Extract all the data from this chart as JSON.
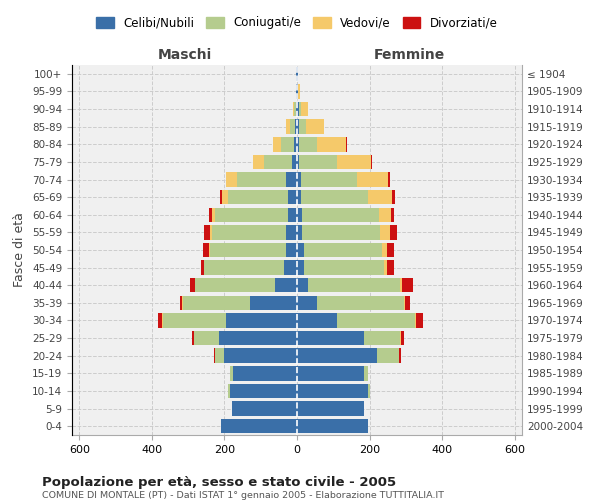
{
  "age_groups": [
    "0-4",
    "5-9",
    "10-14",
    "15-19",
    "20-24",
    "25-29",
    "30-34",
    "35-39",
    "40-44",
    "45-49",
    "50-54",
    "55-59",
    "60-64",
    "65-69",
    "70-74",
    "75-79",
    "80-84",
    "85-89",
    "90-94",
    "95-99",
    "100+"
  ],
  "birth_years": [
    "2000-2004",
    "1995-1999",
    "1990-1994",
    "1985-1989",
    "1980-1984",
    "1975-1979",
    "1970-1974",
    "1965-1969",
    "1960-1964",
    "1955-1959",
    "1950-1954",
    "1945-1949",
    "1940-1944",
    "1935-1939",
    "1930-1934",
    "1925-1929",
    "1920-1924",
    "1915-1919",
    "1910-1914",
    "1905-1909",
    "≤ 1904"
  ],
  "colors": {
    "celibi": "#3a6fa8",
    "coniugati": "#b5cc8e",
    "vedovi": "#f5c96a",
    "divorziati": "#cc1111"
  },
  "males": {
    "celibi": [
      210,
      180,
      185,
      175,
      200,
      215,
      195,
      130,
      60,
      35,
      30,
      30,
      25,
      25,
      30,
      15,
      8,
      5,
      3,
      2,
      2
    ],
    "coniugati": [
      0,
      0,
      5,
      10,
      25,
      70,
      175,
      185,
      220,
      220,
      210,
      205,
      200,
      165,
      135,
      75,
      35,
      15,
      5,
      2,
      0
    ],
    "vedovi": [
      0,
      0,
      0,
      0,
      0,
      0,
      2,
      2,
      2,
      2,
      3,
      5,
      10,
      18,
      30,
      30,
      22,
      10,
      2,
      0,
      0
    ],
    "divorziati": [
      0,
      0,
      0,
      0,
      5,
      5,
      12,
      5,
      12,
      8,
      15,
      15,
      8,
      5,
      2,
      0,
      0,
      0,
      0,
      0,
      0
    ]
  },
  "females": {
    "celibi": [
      195,
      185,
      195,
      185,
      220,
      185,
      110,
      55,
      30,
      20,
      18,
      15,
      15,
      12,
      10,
      5,
      5,
      5,
      5,
      2,
      2
    ],
    "coniugati": [
      0,
      0,
      5,
      10,
      60,
      100,
      215,
      240,
      255,
      220,
      215,
      215,
      210,
      185,
      155,
      105,
      50,
      20,
      5,
      2,
      0
    ],
    "vedovi": [
      0,
      0,
      0,
      0,
      2,
      2,
      3,
      3,
      5,
      8,
      15,
      25,
      35,
      65,
      85,
      95,
      80,
      50,
      20,
      5,
      2
    ],
    "divorziati": [
      0,
      0,
      0,
      0,
      5,
      8,
      20,
      12,
      30,
      18,
      18,
      20,
      8,
      8,
      5,
      2,
      2,
      0,
      0,
      0,
      0
    ]
  },
  "title": "Popolazione per età, sesso e stato civile - 2005",
  "subtitle": "COMUNE DI MONTALE (PT) - Dati ISTAT 1° gennaio 2005 - Elaborazione TUTTITALIA.IT",
  "ylabel_left": "Fasce di età",
  "xlabel_left": "Maschi",
  "xlabel_right": "Femmine",
  "xlim": 620,
  "legend_labels": [
    "Celibi/Nubili",
    "Coniugati/e",
    "Vedovi/e",
    "Divorziati/e"
  ],
  "bg_color": "#f0f0f0"
}
